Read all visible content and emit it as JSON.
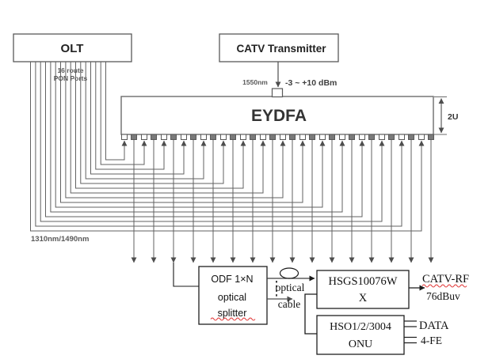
{
  "boxes": {
    "olt": {
      "label": "OLT"
    },
    "catv_transmitter": {
      "label": "CATV Transmitter"
    },
    "eydfa": {
      "label": "EYDFA"
    },
    "odf_splitter": {
      "line1": "ODF 1×N",
      "line2": "optical",
      "line3": "splitter"
    },
    "hsgs": {
      "line1": "HSGS10076W",
      "line2": "X"
    },
    "onu": {
      "line1": "HSO1/2/3004",
      "line2": "ONU"
    }
  },
  "labels": {
    "pon_ports_line1": "16 route",
    "pon_ports_line2": "PON Ports",
    "wavelength_1550": "1550nm",
    "power_range": "-3 ~ +10 dBm",
    "height_2u": "2U",
    "wavelength_1310_1490": "1310nm/1490nm",
    "optical_cable_line1": "optical",
    "optical_cable_line2": "cable",
    "catv_rf": "CATV-RF",
    "rf_level": "76dBuv",
    "data_out": "DATA",
    "fe_out": "4-FE"
  },
  "structure": {
    "pon_route_count": 16,
    "eydfa_port_pairs": 16,
    "eydfa_height_units": "2U"
  },
  "colors": {
    "line_gray": "#616161",
    "line_dark": "#1a1a1a",
    "port_fill": "#7a7a7a",
    "box_border_gray": "#595959",
    "box_border_dark": "#1f1f1f",
    "text_dark": "#1c1c1c",
    "text_gray": "#595959",
    "squiggle_red": "#e03131"
  }
}
